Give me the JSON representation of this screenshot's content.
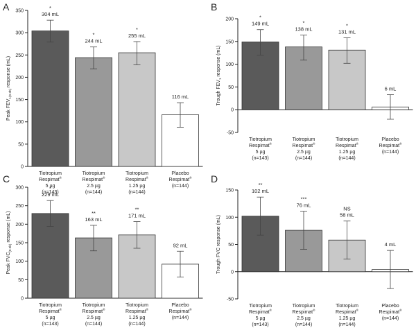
{
  "chart_data": [
    {
      "type": "bar",
      "panel": "A",
      "ylabel": "Peak FEV",
      "ylabel_sub": "1(0-3h)",
      "ylabel_tail": " response (mL)",
      "ylim": [
        0,
        350
      ],
      "yticks": [
        "0",
        "50",
        "100",
        "150",
        "200",
        "250",
        "300",
        "350"
      ],
      "bars": [
        {
          "value": 304,
          "err_low": 279,
          "err_high": 328,
          "label": "304 mL",
          "sig": "*",
          "color": "#5a5a5a"
        },
        {
          "value": 244,
          "err_low": 219,
          "err_high": 268,
          "label": "244 mL",
          "sig": "*",
          "color": "#999999"
        },
        {
          "value": 255,
          "err_low": 228,
          "err_high": 280,
          "label": "255 mL",
          "sig": "*",
          "color": "#c8c8c8"
        },
        {
          "value": 116,
          "err_low": 88,
          "err_high": 143,
          "label": "116 mL",
          "sig": "",
          "color": "#ffffff"
        }
      ]
    },
    {
      "type": "bar",
      "panel": "B",
      "ylabel": "Trough FEV",
      "ylabel_sub": "1",
      "ylabel_tail": " response (mL)",
      "ylim": [
        -50,
        200
      ],
      "yticks": [
        "-50",
        "0",
        "50",
        "100",
        "150",
        "200"
      ],
      "bars": [
        {
          "value": 149,
          "err_low": 120,
          "err_high": 176,
          "label": "149 mL",
          "sig": "*",
          "color": "#5a5a5a"
        },
        {
          "value": 138,
          "err_low": 109,
          "err_high": 164,
          "label": "138 mL",
          "sig": "*",
          "color": "#999999"
        },
        {
          "value": 131,
          "err_low": 102,
          "err_high": 158,
          "label": "131 mL",
          "sig": "*",
          "color": "#c8c8c8"
        },
        {
          "value": 6,
          "err_low": -21,
          "err_high": 33,
          "label": "6 mL",
          "sig": "",
          "color": "#ffffff"
        }
      ]
    },
    {
      "type": "bar",
      "panel": "C",
      "ylabel": "Peak FVC",
      "ylabel_sub": "(0-3h)",
      "ylabel_tail": " response (mL)",
      "ylim": [
        0,
        300
      ],
      "yticks": [
        "0",
        "50",
        "100",
        "150",
        "200",
        "250",
        "300"
      ],
      "bars": [
        {
          "value": 229,
          "err_low": 194,
          "err_high": 264,
          "label": "229 mL",
          "sig": "*",
          "color": "#5a5a5a"
        },
        {
          "value": 163,
          "err_low": 128,
          "err_high": 197,
          "label": "163 mL",
          "sig": "**",
          "color": "#999999"
        },
        {
          "value": 171,
          "err_low": 135,
          "err_high": 207,
          "label": "171 mL",
          "sig": "**",
          "color": "#c8c8c8"
        },
        {
          "value": 92,
          "err_low": 57,
          "err_high": 127,
          "label": "92 mL",
          "sig": "",
          "color": "#ffffff"
        }
      ]
    },
    {
      "type": "bar",
      "panel": "D",
      "ylabel": "Trough FVC response (mL)",
      "ylabel_sub": "",
      "ylabel_tail": "",
      "ylim": [
        -50,
        150
      ],
      "yticks": [
        "-50",
        "0",
        "50",
        "100",
        "150"
      ],
      "bars": [
        {
          "value": 102,
          "err_low": 67,
          "err_high": 137,
          "label": "102 mL",
          "sig": "**",
          "color": "#5a5a5a"
        },
        {
          "value": 76,
          "err_low": 41,
          "err_high": 111,
          "label": "76 mL",
          "sig": "***",
          "color": "#999999"
        },
        {
          "value": 58,
          "err_low": 23,
          "err_high": 93,
          "label": "58 mL",
          "sig": "NS",
          "color": "#c8c8c8"
        },
        {
          "value": 4,
          "err_low": -31,
          "err_high": 39,
          "label": "4 mL",
          "sig": "",
          "color": "#ffffff"
        }
      ]
    }
  ],
  "categories": [
    {
      "line1": "Tiotropium",
      "line2": "Respimat",
      "reg": "®",
      "dose": "5 µg",
      "n": "(n=143)"
    },
    {
      "line1": "Tiotropium",
      "line2": "Respimat",
      "reg": "®",
      "dose": "2.5 µg",
      "n": "(n=144)"
    },
    {
      "line1": "Tiotropium",
      "line2": "Respimat",
      "reg": "®",
      "dose": "1.25 µg",
      "n": "(n=144)"
    },
    {
      "line1": "Placebo",
      "line2": "Respimat",
      "reg": "®",
      "dose": "",
      "n": "(n=144)"
    }
  ],
  "colors": {
    "axis": "#222222",
    "bar_stroke": "#333333",
    "error": "#444444"
  }
}
